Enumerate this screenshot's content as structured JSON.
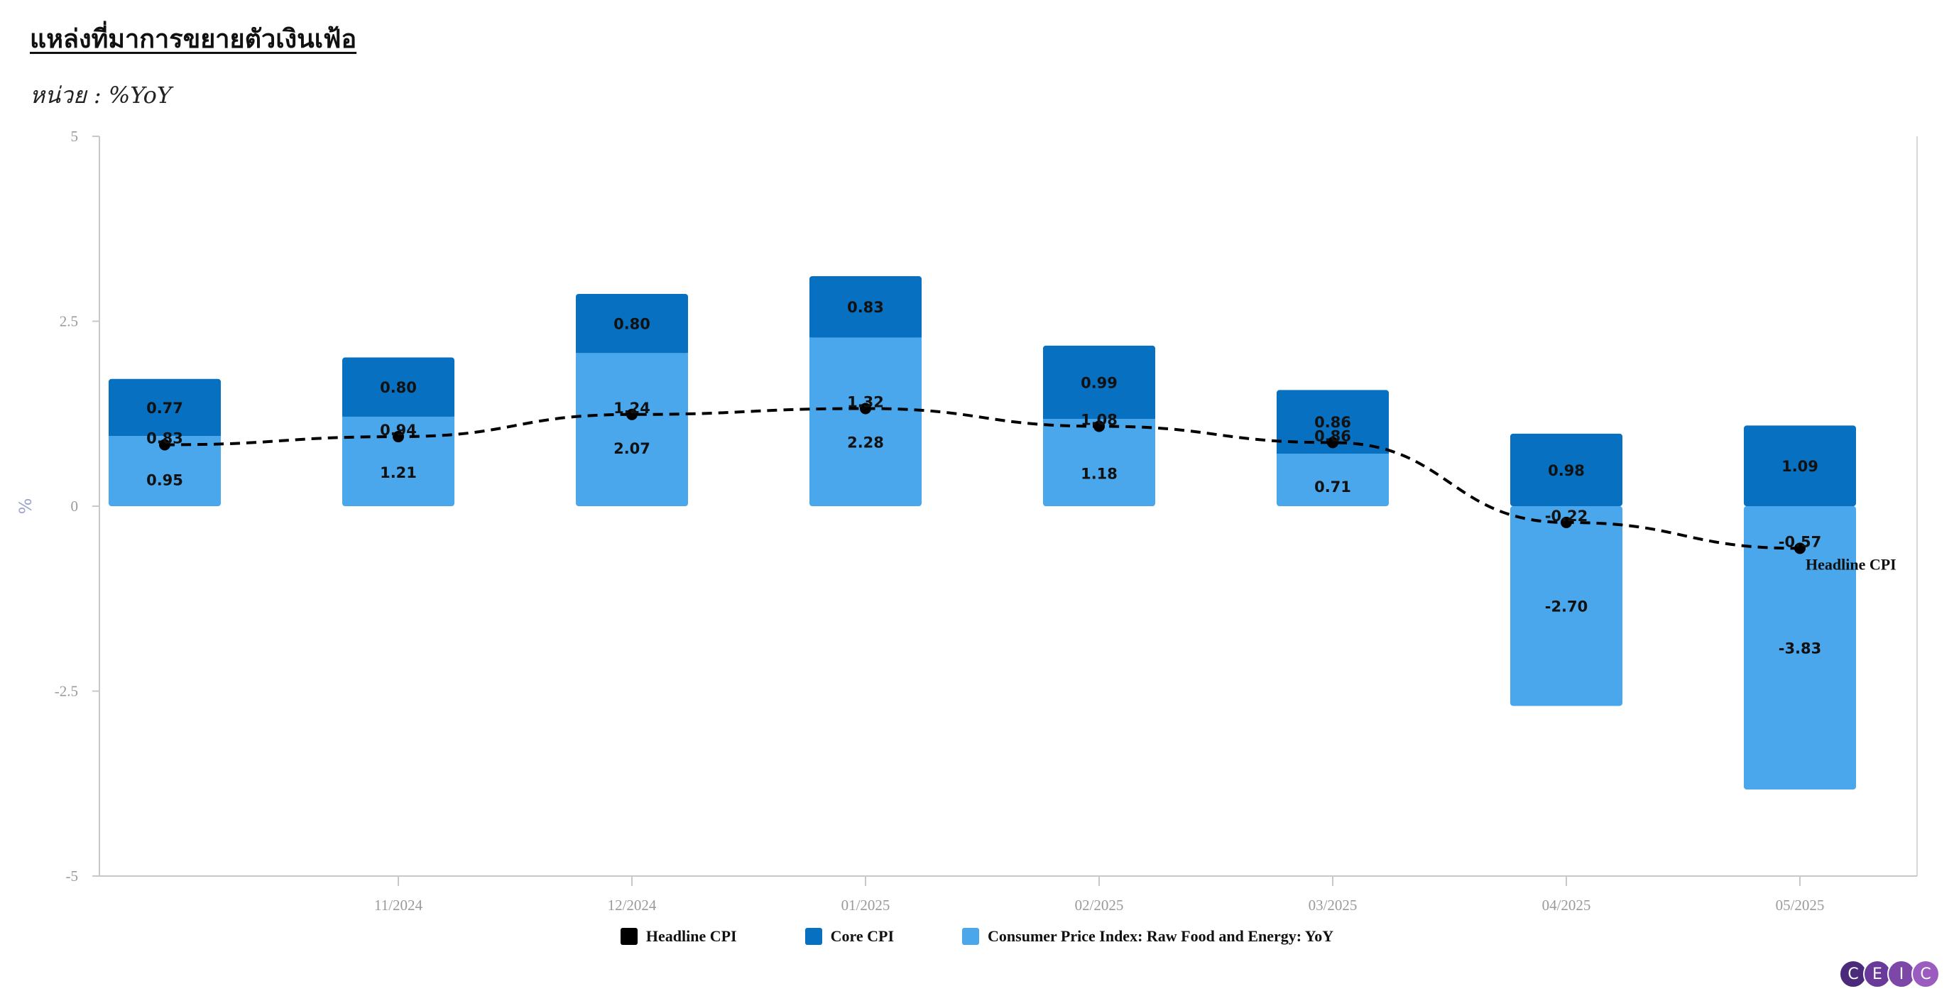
{
  "title": "แหล่งที่มาการขยายตัวเงินเฟ้อ",
  "subtitle": "หน่วย : %YoY",
  "logo_text": [
    "C",
    "E",
    "I",
    "C"
  ],
  "chart_data": {
    "type": "bar",
    "stacked": true,
    "categories": [
      "",
      "11/2024",
      "12/2024",
      "01/2025",
      "02/2025",
      "03/2025",
      "04/2025",
      "05/2025"
    ],
    "ylabel": "%",
    "ylim": [
      -5,
      5
    ],
    "yticks": [
      "5",
      "2.5",
      "0",
      "-2.5",
      "-5"
    ],
    "grid": false,
    "legend_position": "bottom",
    "series": [
      {
        "name": "Consumer Price Index: Raw Food and Energy: YoY",
        "kind": "bar",
        "color": "#4aa7eb",
        "values": [
          0.95,
          1.21,
          2.07,
          2.28,
          1.18,
          0.71,
          -2.7,
          -3.83
        ],
        "labels": [
          "0.95",
          "1.21",
          "2.07",
          "2.28",
          "1.18",
          "0.71",
          "-2.70",
          "-3.83"
        ]
      },
      {
        "name": "Core CPI",
        "kind": "bar",
        "color": "#0870c0",
        "values": [
          0.77,
          0.8,
          0.8,
          0.83,
          0.99,
          0.86,
          0.98,
          1.09
        ],
        "labels": [
          "0.77",
          "0.80",
          "0.80",
          "0.83",
          "0.99",
          "0.86",
          "0.98",
          "1.09"
        ]
      },
      {
        "name": "Headline CPI",
        "kind": "line",
        "color": "#000000",
        "dashed": true,
        "values": [
          0.83,
          0.94,
          1.24,
          1.32,
          1.08,
          0.86,
          -0.22,
          -0.57
        ],
        "labels": [
          "0.83",
          "0.94",
          "1.24",
          "1.32",
          "1.08",
          "0.86",
          "-0.22",
          "-0.57"
        ],
        "end_label": "Headline CPI"
      }
    ],
    "legend": [
      {
        "name": "Headline CPI",
        "color": "#000000"
      },
      {
        "name": "Core CPI",
        "color": "#0870c0"
      },
      {
        "name": "Consumer Price Index: Raw Food and Energy: YoY",
        "color": "#4aa7eb"
      }
    ]
  }
}
